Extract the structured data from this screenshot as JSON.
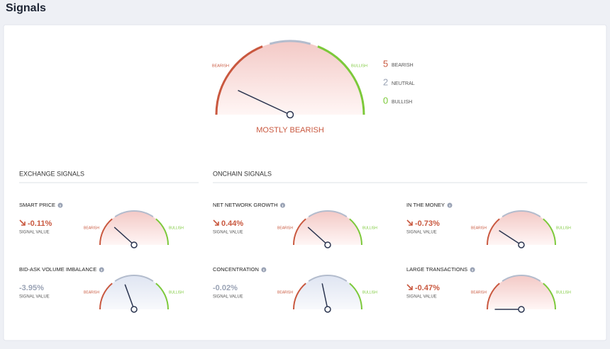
{
  "header": {
    "title": "Signals"
  },
  "summary": {
    "gauge_labels": [
      "BEARISH",
      "BULLISH"
    ],
    "verdict": "MOSTLY BEARISH",
    "counts": [
      {
        "count": 5,
        "label": "BEARISH"
      },
      {
        "count": 2,
        "label": "NEUTRAL"
      },
      {
        "count": 0,
        "label": "BULLISH"
      }
    ]
  },
  "sections": [
    {
      "title": "EXCHANGE SIGNALS"
    },
    {
      "title": "ONCHAIN SIGNALS"
    }
  ],
  "signals": [
    {
      "name": "SMART PRICE",
      "value": "-0.11%",
      "caption": "SIGNAL VALUE",
      "gauge_labels": [
        "BEARISH",
        "BULLISH"
      ]
    },
    {
      "name": "NET NETWORK GROWTH",
      "value": "0.44%",
      "caption": "SIGNAL VALUE",
      "gauge_labels": [
        "BEARISH",
        "BULLISH"
      ]
    },
    {
      "name": "IN THE MONEY",
      "value": "-0.73%",
      "caption": "SIGNAL VALUE",
      "gauge_labels": [
        "BEARISH",
        "BULLISH"
      ]
    },
    {
      "name": "BID-ASK VOLUME IMBALANCE",
      "value": "-3.95%",
      "caption": "SIGNAL VALUE",
      "gauge_labels": [
        "BEARISH",
        "BULLISH"
      ]
    },
    {
      "name": "CONCENTRATION",
      "value": "-0.02%",
      "caption": "SIGNAL VALUE",
      "gauge_labels": [
        "BEARISH",
        "BULLISH"
      ]
    },
    {
      "name": "LARGE TRANSACTIONS",
      "value": "-0.47%",
      "caption": "SIGNAL VALUE",
      "gauge_labels": [
        "BEARISH",
        "BULLISH"
      ]
    }
  ]
}
